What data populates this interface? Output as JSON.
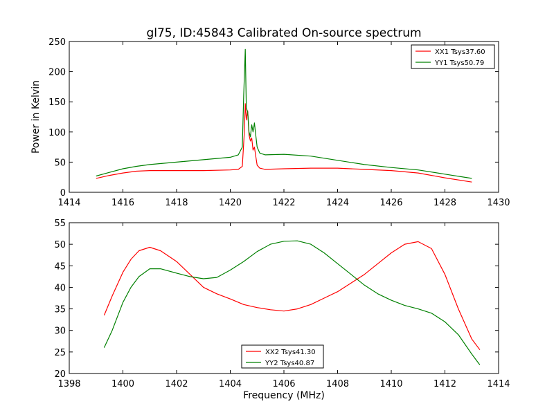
{
  "chart_data": [
    {
      "type": "line",
      "title": "gl75, ID:45843 Calibrated On-source spectrum",
      "xlabel": "",
      "ylabel": "Power in Kelvin",
      "xlim": [
        1414,
        1430
      ],
      "ylim": [
        0,
        250
      ],
      "xticks": [
        "1414",
        "1416",
        "1418",
        "1420",
        "1422",
        "1424",
        "1426",
        "1428",
        "1430"
      ],
      "yticks": [
        "0",
        "50",
        "100",
        "150",
        "200",
        "250"
      ],
      "legend_position": "top-right",
      "grid": false,
      "series": [
        {
          "name": "XX1 Tsys37.60",
          "color": "#ff0000",
          "x": [
            1415,
            1415.5,
            1416,
            1416.5,
            1417,
            1418,
            1419,
            1420,
            1420.3,
            1420.45,
            1420.52,
            1420.56,
            1420.6,
            1420.65,
            1420.7,
            1420.75,
            1420.8,
            1420.85,
            1420.9,
            1420.95,
            1421.0,
            1421.1,
            1421.3,
            1422,
            1423,
            1424,
            1425,
            1426,
            1427,
            1428,
            1429
          ],
          "values": [
            23,
            28,
            32,
            35,
            36,
            36,
            36,
            37,
            38,
            43,
            95,
            147,
            120,
            135,
            95,
            85,
            90,
            70,
            75,
            60,
            45,
            40,
            38,
            39,
            40,
            40,
            38,
            36,
            32,
            24,
            17
          ]
        },
        {
          "name": "YY1 Tsys50.79",
          "color": "#008000",
          "x": [
            1415,
            1415.5,
            1416,
            1416.5,
            1417,
            1418,
            1419,
            1420,
            1420.3,
            1420.45,
            1420.5,
            1420.56,
            1420.6,
            1420.65,
            1420.7,
            1420.75,
            1420.8,
            1420.85,
            1420.9,
            1420.95,
            1421.0,
            1421.1,
            1421.3,
            1422,
            1423,
            1424,
            1425,
            1426,
            1427,
            1428,
            1429
          ],
          "values": [
            27,
            33,
            39,
            43,
            46,
            50,
            54,
            58,
            62,
            75,
            160,
            237,
            140,
            133,
            100,
            92,
            112,
            100,
            115,
            95,
            75,
            65,
            62,
            63,
            60,
            53,
            46,
            41,
            37,
            30,
            23
          ]
        }
      ]
    },
    {
      "type": "line",
      "title": "",
      "xlabel": "Frequency (MHz)",
      "ylabel": "",
      "xlim": [
        1398,
        1414
      ],
      "ylim": [
        20,
        55
      ],
      "xticks": [
        "1398",
        "1400",
        "1402",
        "1404",
        "1406",
        "1408",
        "1410",
        "1412",
        "1414"
      ],
      "yticks": [
        "20",
        "25",
        "30",
        "35",
        "40",
        "45",
        "50",
        "55"
      ],
      "legend_position": "bottom-center",
      "grid": false,
      "series": [
        {
          "name": "XX2 Tsys41.30",
          "color": "#ff0000",
          "x": [
            1399.3,
            1399.6,
            1400.0,
            1400.3,
            1400.6,
            1401.0,
            1401.4,
            1402.0,
            1402.5,
            1403.0,
            1403.5,
            1404.0,
            1404.5,
            1405.0,
            1405.5,
            1406.0,
            1406.5,
            1407.0,
            1407.5,
            1408.0,
            1408.5,
            1409.0,
            1409.5,
            1410.0,
            1410.5,
            1411.0,
            1411.5,
            1412.0,
            1412.5,
            1413.0,
            1413.3
          ],
          "values": [
            33.5,
            38,
            43.5,
            46.5,
            48.5,
            49.3,
            48.5,
            46,
            43,
            40,
            38.5,
            37.3,
            36,
            35.3,
            34.8,
            34.5,
            35,
            36,
            37.5,
            39,
            41,
            43,
            45.5,
            48,
            50,
            50.6,
            49,
            43,
            35,
            28,
            25.5
          ]
        },
        {
          "name": "YY2 Tsys40.87",
          "color": "#008000",
          "x": [
            1399.3,
            1399.6,
            1400.0,
            1400.3,
            1400.6,
            1401.0,
            1401.4,
            1402.0,
            1402.5,
            1403.0,
            1403.5,
            1404.0,
            1404.5,
            1405.0,
            1405.5,
            1406.0,
            1406.5,
            1407.0,
            1407.5,
            1408.0,
            1408.5,
            1409.0,
            1409.5,
            1410.0,
            1410.5,
            1411.0,
            1411.5,
            1412.0,
            1412.5,
            1413.0,
            1413.3
          ],
          "values": [
            26,
            30,
            36.5,
            40,
            42.5,
            44.3,
            44.3,
            43.3,
            42.5,
            42,
            42.3,
            44,
            46,
            48.3,
            50,
            50.7,
            50.8,
            50,
            48,
            45.5,
            43,
            40.5,
            38.5,
            37,
            35.8,
            35,
            34,
            32,
            29,
            24.5,
            22
          ]
        }
      ]
    }
  ]
}
